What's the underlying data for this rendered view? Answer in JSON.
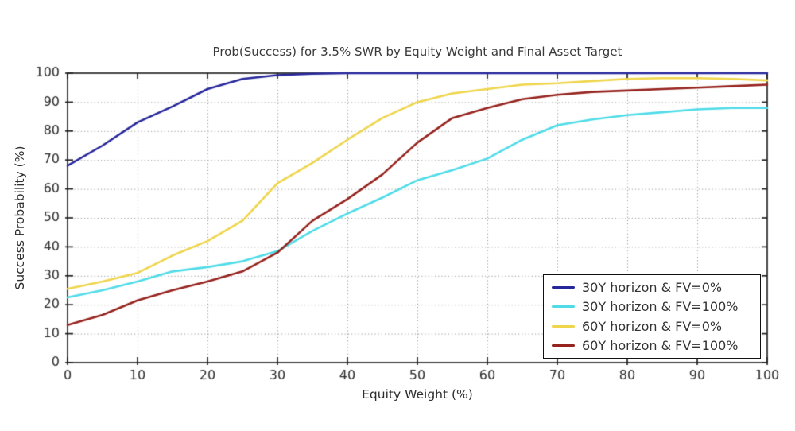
{
  "figure": {
    "title": "Prob(Success) for 3.5% SWR by Equity Weight and Final Asset Target"
  },
  "chart_data": {
    "type": "line",
    "title": "Prob(Success) for 3.5% SWR by Equity Weight and Final Asset Target",
    "xlabel": "Equity Weight (%)",
    "ylabel": "Success Probability (%)",
    "xlim": [
      0,
      100
    ],
    "ylim": [
      0,
      100
    ],
    "xticks": [
      0,
      10,
      20,
      30,
      40,
      50,
      60,
      70,
      80,
      90,
      100
    ],
    "yticks": [
      0,
      10,
      20,
      30,
      40,
      50,
      60,
      70,
      80,
      90,
      100
    ],
    "grid": "dotted",
    "legend_position": "bottom-right",
    "x": [
      0,
      5,
      10,
      15,
      20,
      25,
      30,
      35,
      40,
      45,
      50,
      55,
      60,
      65,
      70,
      75,
      80,
      85,
      90,
      95,
      100
    ],
    "series": [
      {
        "name": "30Y horizon & FV=0%",
        "color": "#27279C",
        "values": [
          68,
          75,
          83,
          88.5,
          94.5,
          98,
          99.3,
          99.8,
          100,
          100,
          100,
          100,
          100,
          100,
          100,
          100,
          100,
          100,
          100,
          100,
          100
        ]
      },
      {
        "name": "30Y horizon & FV=100%",
        "color": "#4FDCE8",
        "values": [
          22.5,
          25,
          28,
          31.5,
          33,
          35,
          38.5,
          45.5,
          51.5,
          57,
          63,
          66.5,
          70.5,
          77,
          82,
          84,
          85.5,
          86.5,
          87.5,
          88,
          88
        ]
      },
      {
        "name": "60Y horizon & FV=0%",
        "color": "#EFD54A",
        "values": [
          25.5,
          28,
          31,
          37,
          42,
          49,
          62,
          69,
          77,
          84.5,
          90,
          93,
          94.5,
          96,
          96.5,
          97.3,
          98,
          98.3,
          98.3,
          98,
          97.5
        ]
      },
      {
        "name": "60Y horizon & FV=100%",
        "color": "#96231E",
        "values": [
          13,
          16.5,
          21.5,
          25,
          28,
          31.5,
          38,
          49,
          56.5,
          65,
          76,
          84.5,
          88,
          91,
          92.5,
          93.5,
          94,
          94.5,
          95,
          95.5,
          96
        ]
      }
    ],
    "colors": {
      "grid": "#999999",
      "axis_box": "#1a1a1a",
      "tick_text": "#2b2b2b",
      "background": "#ffffff"
    }
  }
}
